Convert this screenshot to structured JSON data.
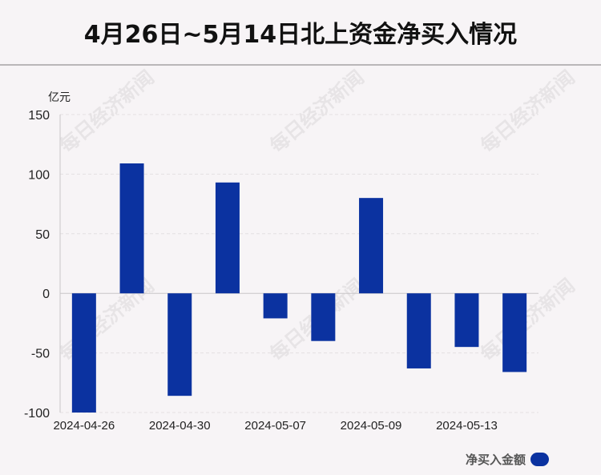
{
  "title": "4月26日~5月14日北上资金净买入情况",
  "watermark": "每日经济新闻",
  "chart_data": {
    "type": "bar",
    "ylabel": "亿元",
    "ylim": [
      -100,
      150
    ],
    "yticks": [
      150,
      100,
      50,
      0,
      -50,
      -100
    ],
    "x_labels_shown": [
      "2024-04-26",
      "2024-04-30",
      "2024-05-07",
      "2024-05-09",
      "2024-05-13"
    ],
    "series": [
      {
        "name": "净买入金额",
        "color": "#0b32a0",
        "values": [
          -100,
          109,
          -86,
          93,
          -21,
          -40,
          80,
          -63,
          -45,
          -66
        ]
      }
    ],
    "grid": true,
    "legend_position": "bottom-right"
  }
}
